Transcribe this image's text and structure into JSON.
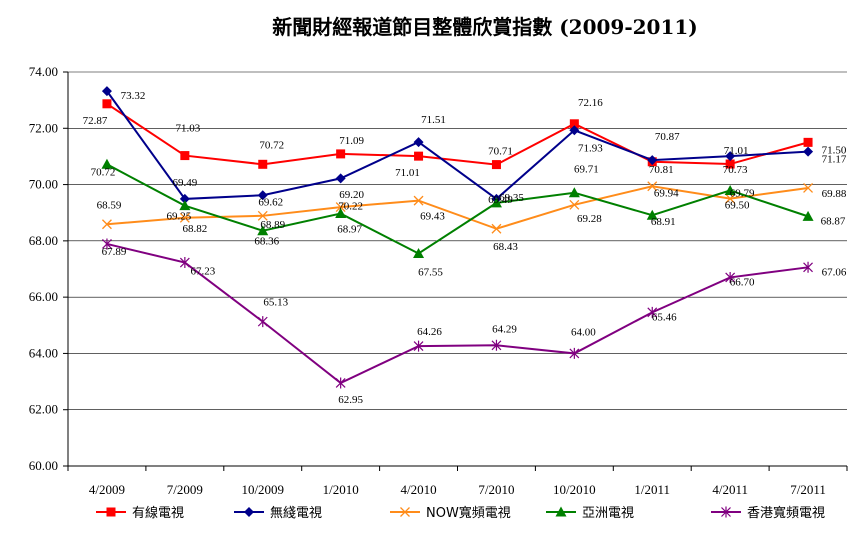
{
  "chart_data": {
    "type": "line",
    "title": "新聞財經報道節目整體欣賞指數 (2009-2011)",
    "xlabel": "",
    "ylabel": "",
    "categories": [
      "4/2009",
      "7/2009",
      "10/2009",
      "1/2010",
      "4/2010",
      "7/2010",
      "10/2010",
      "1/2011",
      "4/2011",
      "7/2011"
    ],
    "ylim": [
      60,
      74
    ],
    "ytick_labels": [
      "60.00",
      "62.00",
      "64.00",
      "66.00",
      "68.00",
      "70.00",
      "72.00",
      "74.00"
    ],
    "grid": true,
    "legend_position": "bottom",
    "series": [
      {
        "name": "有線電視",
        "color": "#ff0000",
        "marker": "square",
        "values": [
          72.87,
          71.03,
          70.72,
          71.09,
          71.01,
          70.71,
          72.16,
          70.81,
          70.73,
          71.5
        ],
        "labels": [
          "72.87",
          "71.03",
          "70.72",
          "71.09",
          "71.01",
          "70.71",
          "72.16",
          "70.81",
          "70.73",
          "71.50"
        ]
      },
      {
        "name": "無綫電視",
        "color": "#00008b",
        "marker": "diamond",
        "values": [
          73.32,
          69.49,
          69.62,
          70.22,
          71.51,
          69.49,
          71.93,
          70.87,
          71.01,
          71.17
        ],
        "labels": [
          "73.32",
          "69.49",
          "69.62",
          "70.22",
          "71.51",
          "69.49",
          "71.93",
          "70.87",
          "71.01",
          "71.17"
        ]
      },
      {
        "name": "NOW寬頻電視",
        "color": "#ff8c1a",
        "marker": "x",
        "values": [
          68.59,
          68.82,
          68.89,
          69.2,
          69.43,
          68.43,
          69.28,
          69.94,
          69.5,
          69.88
        ],
        "labels": [
          "68.59",
          "68.82",
          "68.89",
          "69.20",
          "69.43",
          "68.43",
          "69.28",
          "69.94",
          "69.50",
          "69.88"
        ]
      },
      {
        "name": "亞洲電視",
        "color": "#008000",
        "marker": "triangle",
        "values": [
          70.72,
          69.25,
          68.36,
          68.97,
          67.55,
          69.35,
          69.71,
          68.91,
          69.79,
          68.87
        ],
        "labels": [
          "70.72",
          "69.25",
          "68.36",
          "68.97",
          "67.55",
          "69.35",
          "69.71",
          "68.91",
          "69.79",
          "68.87"
        ]
      },
      {
        "name": "香港寬頻電視",
        "color": "#800080",
        "marker": "star",
        "values": [
          67.89,
          67.23,
          65.13,
          62.95,
          64.26,
          64.29,
          64.0,
          65.46,
          66.7,
          67.06
        ],
        "labels": [
          "67.89",
          "67.23",
          "65.13",
          "62.95",
          "64.26",
          "64.29",
          "64.00",
          "65.46",
          "66.70",
          "67.06"
        ]
      }
    ]
  }
}
